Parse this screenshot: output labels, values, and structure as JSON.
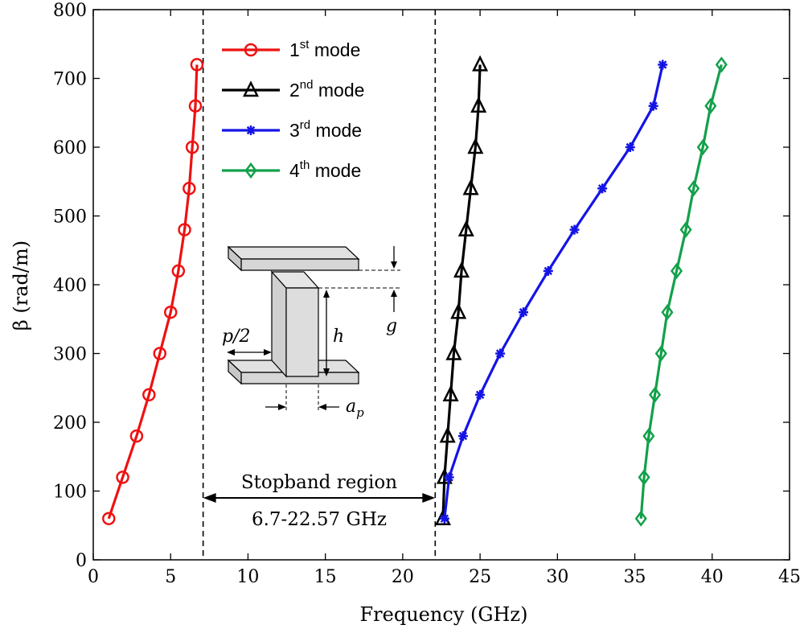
{
  "chart_data": {
    "type": "line",
    "xlabel": "Frequency (GHz)",
    "ylabel": "β (rad/m)",
    "xlim": [
      0,
      45
    ],
    "ylim": [
      0,
      800
    ],
    "xticks": [
      0,
      5,
      10,
      15,
      20,
      25,
      30,
      35,
      40,
      45
    ],
    "yticks": [
      0,
      100,
      200,
      300,
      400,
      500,
      600,
      700,
      800
    ],
    "grid": false,
    "legend_position": "top-left",
    "series": [
      {
        "name": "1st mode",
        "base": "1",
        "sup": "st",
        "suffix": " mode",
        "color": "#ee1111",
        "marker": "circle",
        "x": [
          1.0,
          1.9,
          2.8,
          3.6,
          4.3,
          5.0,
          5.5,
          5.9,
          6.2,
          6.4,
          6.6,
          6.7
        ],
        "y": [
          60,
          120,
          180,
          240,
          300,
          360,
          420,
          480,
          540,
          600,
          660,
          720
        ]
      },
      {
        "name": "2nd mode",
        "base": "2",
        "sup": "nd",
        "suffix": " mode",
        "color": "#000000",
        "marker": "triangle",
        "x": [
          22.6,
          22.7,
          22.9,
          23.1,
          23.3,
          23.6,
          23.8,
          24.1,
          24.4,
          24.7,
          24.9,
          25.0
        ],
        "y": [
          60,
          120,
          180,
          240,
          300,
          360,
          420,
          480,
          540,
          600,
          660,
          720
        ]
      },
      {
        "name": "3rd mode",
        "base": "3",
        "sup": "rd",
        "suffix": " mode",
        "color": "#1414e6",
        "marker": "asterisk",
        "x": [
          22.7,
          23.0,
          23.9,
          25.0,
          26.3,
          27.8,
          29.4,
          31.1,
          32.9,
          34.7,
          36.2,
          36.8
        ],
        "y": [
          60,
          120,
          180,
          240,
          300,
          360,
          420,
          480,
          540,
          600,
          660,
          720
        ]
      },
      {
        "name": "4th mode",
        "base": "4",
        "sup": "th",
        "suffix": " mode",
        "color": "#13a04a",
        "marker": "diamond",
        "x": [
          35.4,
          35.6,
          35.9,
          36.3,
          36.7,
          37.1,
          37.7,
          38.3,
          38.8,
          39.4,
          39.9,
          40.6
        ],
        "y": [
          60,
          120,
          180,
          240,
          300,
          360,
          420,
          480,
          540,
          600,
          660,
          720
        ]
      }
    ],
    "vlines": [
      7.1,
      22.1
    ],
    "annotation": {
      "label": "Stopband region",
      "range_label": "6.7-22.57 GHz",
      "x_from": 7.1,
      "x_to": 22.1,
      "y": 90
    },
    "inset": {
      "labels": {
        "half_period": "p/2",
        "height": "h",
        "gap": "g",
        "pin_width": "a",
        "pin_width_sub": "p"
      }
    }
  }
}
